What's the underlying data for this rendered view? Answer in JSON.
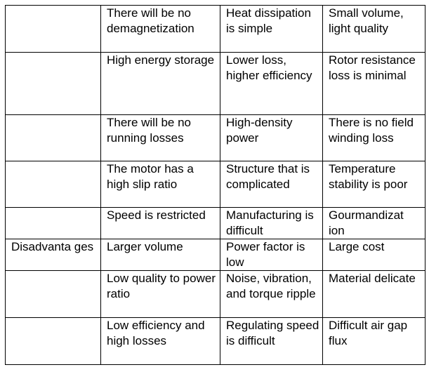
{
  "table": {
    "rows": [
      {
        "category": "",
        "cells": [
          "There will be no demagnetization",
          "Heat dissipation is simple",
          "Small volume, light quality"
        ]
      },
      {
        "category": "",
        "cells": [
          "High energy storage",
          "Lower loss, higher efficiency",
          "Rotor resistance loss is minimal"
        ]
      },
      {
        "category": "",
        "cells": [
          "There will be no running losses",
          "High-density power",
          "There is no field winding loss"
        ]
      },
      {
        "category": "",
        "cells": [
          "The motor has a high slip ratio",
          "Structure that is complicated",
          "Temperature stability is poor"
        ]
      },
      {
        "category": "",
        "cells": [
          "Speed is restricted",
          "Manufacturing is difficult",
          "Gourmandizat ion"
        ]
      },
      {
        "category": "Disadvanta ges",
        "cells": [
          "Larger volume",
          "Power factor is low",
          "Large cost"
        ]
      },
      {
        "category": "",
        "cells": [
          "Low quality to power ratio",
          "Noise, vibration, and torque ripple",
          "Material delicate"
        ]
      },
      {
        "category": "",
        "cells": [
          "Low efficiency and high losses",
          "Regulating speed is difficult",
          "Difficult air gap flux"
        ]
      }
    ]
  }
}
